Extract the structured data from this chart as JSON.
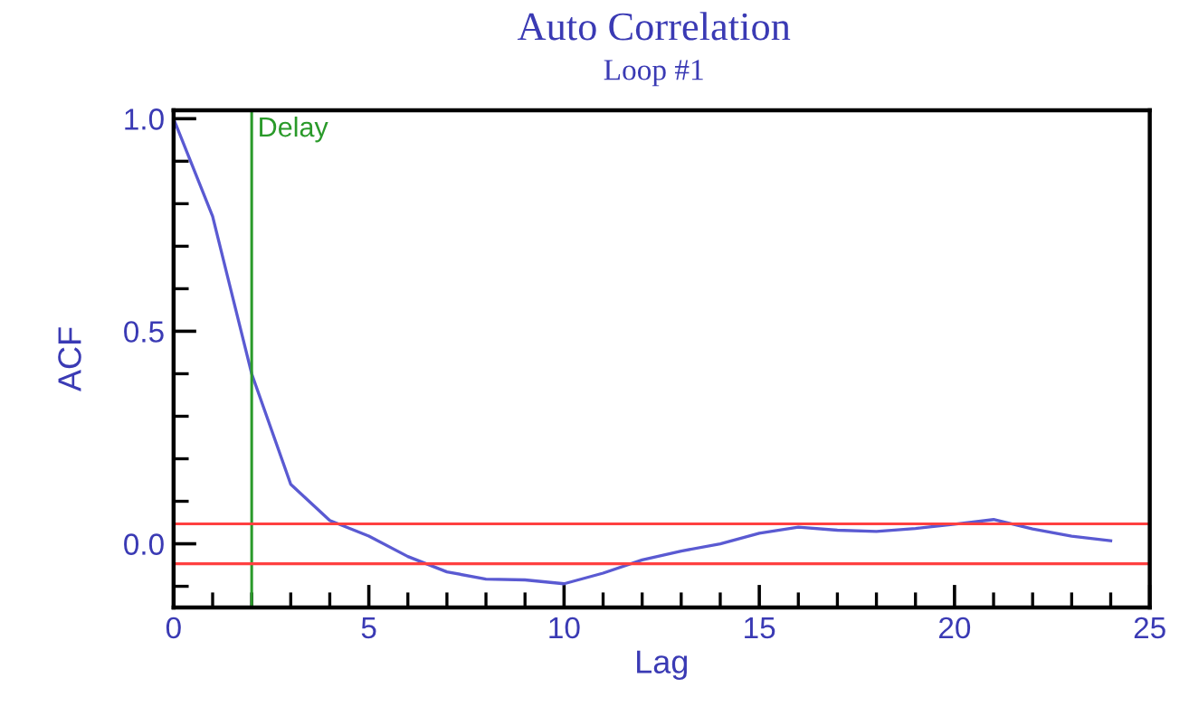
{
  "chart_data": {
    "type": "line",
    "title": "Auto Correlation",
    "subtitle": "Loop #1",
    "xlabel": "Lag",
    "ylabel": "ACF",
    "x": [
      0,
      1,
      2,
      3,
      4,
      5,
      6,
      7,
      8,
      9,
      10,
      11,
      12,
      13,
      14,
      15,
      16,
      17,
      18,
      19,
      20,
      21,
      22,
      23,
      24
    ],
    "series": [
      {
        "color": "#5a5ad2",
        "values": [
          1.0,
          0.77,
          0.4,
          0.14,
          0.055,
          0.018,
          -0.03,
          -0.066,
          -0.083,
          -0.085,
          -0.094,
          -0.069,
          -0.038,
          -0.017,
          0.0,
          0.025,
          0.039,
          0.032,
          0.029,
          0.036,
          0.046,
          0.057,
          0.035,
          0.018,
          0.007
        ]
      }
    ],
    "xlim": [
      0,
      25
    ],
    "ylim": [
      -0.15,
      1.02
    ],
    "xticks": [
      0,
      5,
      10,
      15,
      20,
      25
    ],
    "yticks": [
      {
        "value": 0,
        "label": "0.0"
      },
      0.5,
      {
        "value": 1,
        "label": "1.0"
      }
    ],
    "ref_lines": [
      {
        "axis": "x",
        "value": 2,
        "label": "Delay",
        "color": "#2a9a2a"
      },
      {
        "axis": "y",
        "value": 0.047,
        "color": "#ff4040"
      },
      {
        "axis": "y",
        "value": -0.047,
        "color": "#ff4040"
      }
    ],
    "grid": false,
    "legend": false,
    "marker": "none",
    "line_style": "solid"
  }
}
